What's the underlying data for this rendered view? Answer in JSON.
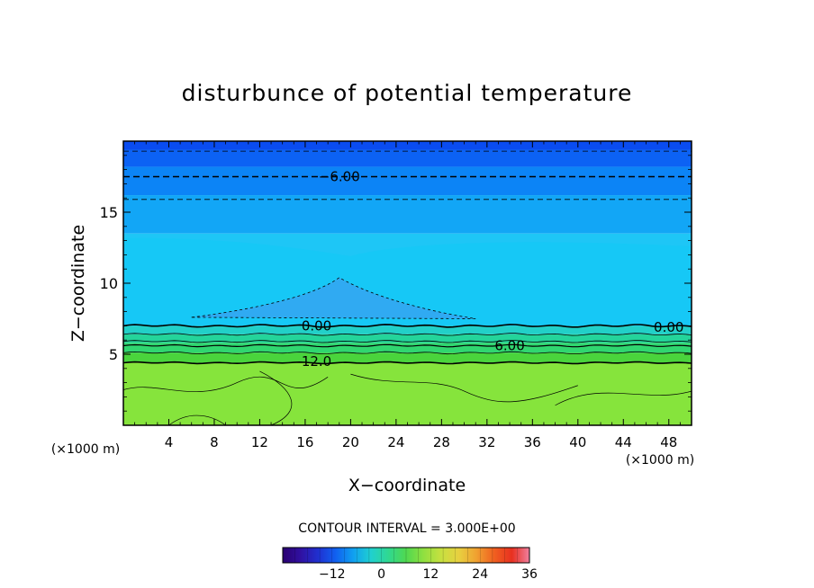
{
  "chart_data": {
    "type": "heatmap",
    "title": "disturbunce of potential temperature",
    "xlabel": "X−coordinate",
    "ylabel": "Z−coordinate",
    "x_unit_left": "(×1000 m)",
    "x_unit_right": "(×1000 m)",
    "xlim": [
      0,
      50
    ],
    "ylim": [
      0,
      20
    ],
    "x_ticks": [
      4,
      8,
      12,
      16,
      20,
      24,
      28,
      32,
      36,
      40,
      44,
      48
    ],
    "y_ticks": [
      5,
      10,
      15
    ],
    "x_tick_labels": [
      "4",
      "8",
      "12",
      "16",
      "20",
      "24",
      "28",
      "32",
      "36",
      "40",
      "44",
      "48"
    ],
    "y_tick_labels": [
      "5",
      "10",
      "15"
    ],
    "contour_interval_text": "CONTOUR INTERVAL = 3.000E+00",
    "contour_labels": [
      {
        "text": "−6.00",
        "x": 19,
        "z": 17.5
      },
      {
        "text": "0.00",
        "x": 17,
        "z": 7.0
      },
      {
        "text": "0.00",
        "x": 48,
        "z": 6.9
      },
      {
        "text": "6.00",
        "x": 34,
        "z": 5.6
      },
      {
        "text": "12.0",
        "x": 17,
        "z": 4.5
      }
    ],
    "field_layers": [
      {
        "z_top": 20.0,
        "color": "#0a4cf0"
      },
      {
        "z_top": 19.4,
        "color": "#0c62f4"
      },
      {
        "z_top": 18.2,
        "color": "#0c84f6"
      },
      {
        "z_top": 16.2,
        "color": "#12a6f6"
      },
      {
        "z_top": 13.5,
        "color": "#1ec6f6"
      },
      {
        "z_top": 7.0,
        "color": "#22d0c8"
      },
      {
        "z_top": 6.4,
        "color": "#24d49a"
      },
      {
        "z_top": 5.8,
        "color": "#30d670"
      },
      {
        "z_top": 5.1,
        "color": "#4ad43c"
      },
      {
        "z_top": 4.4,
        "color": "#86e43c"
      }
    ],
    "colorbar": {
      "ticks": [
        -12,
        0,
        12,
        24,
        36
      ],
      "tick_labels": [
        "−12",
        "0",
        "12",
        "24",
        "36"
      ],
      "range": [
        -24,
        36
      ],
      "colors": [
        "#2a0070",
        "#3010a0",
        "#2030d0",
        "#1060f0",
        "#10a0f0",
        "#20d0d0",
        "#30d890",
        "#50d850",
        "#90e040",
        "#c8e040",
        "#e8d040",
        "#f0a030",
        "#f06020",
        "#e83020",
        "#f080a0"
      ]
    }
  }
}
